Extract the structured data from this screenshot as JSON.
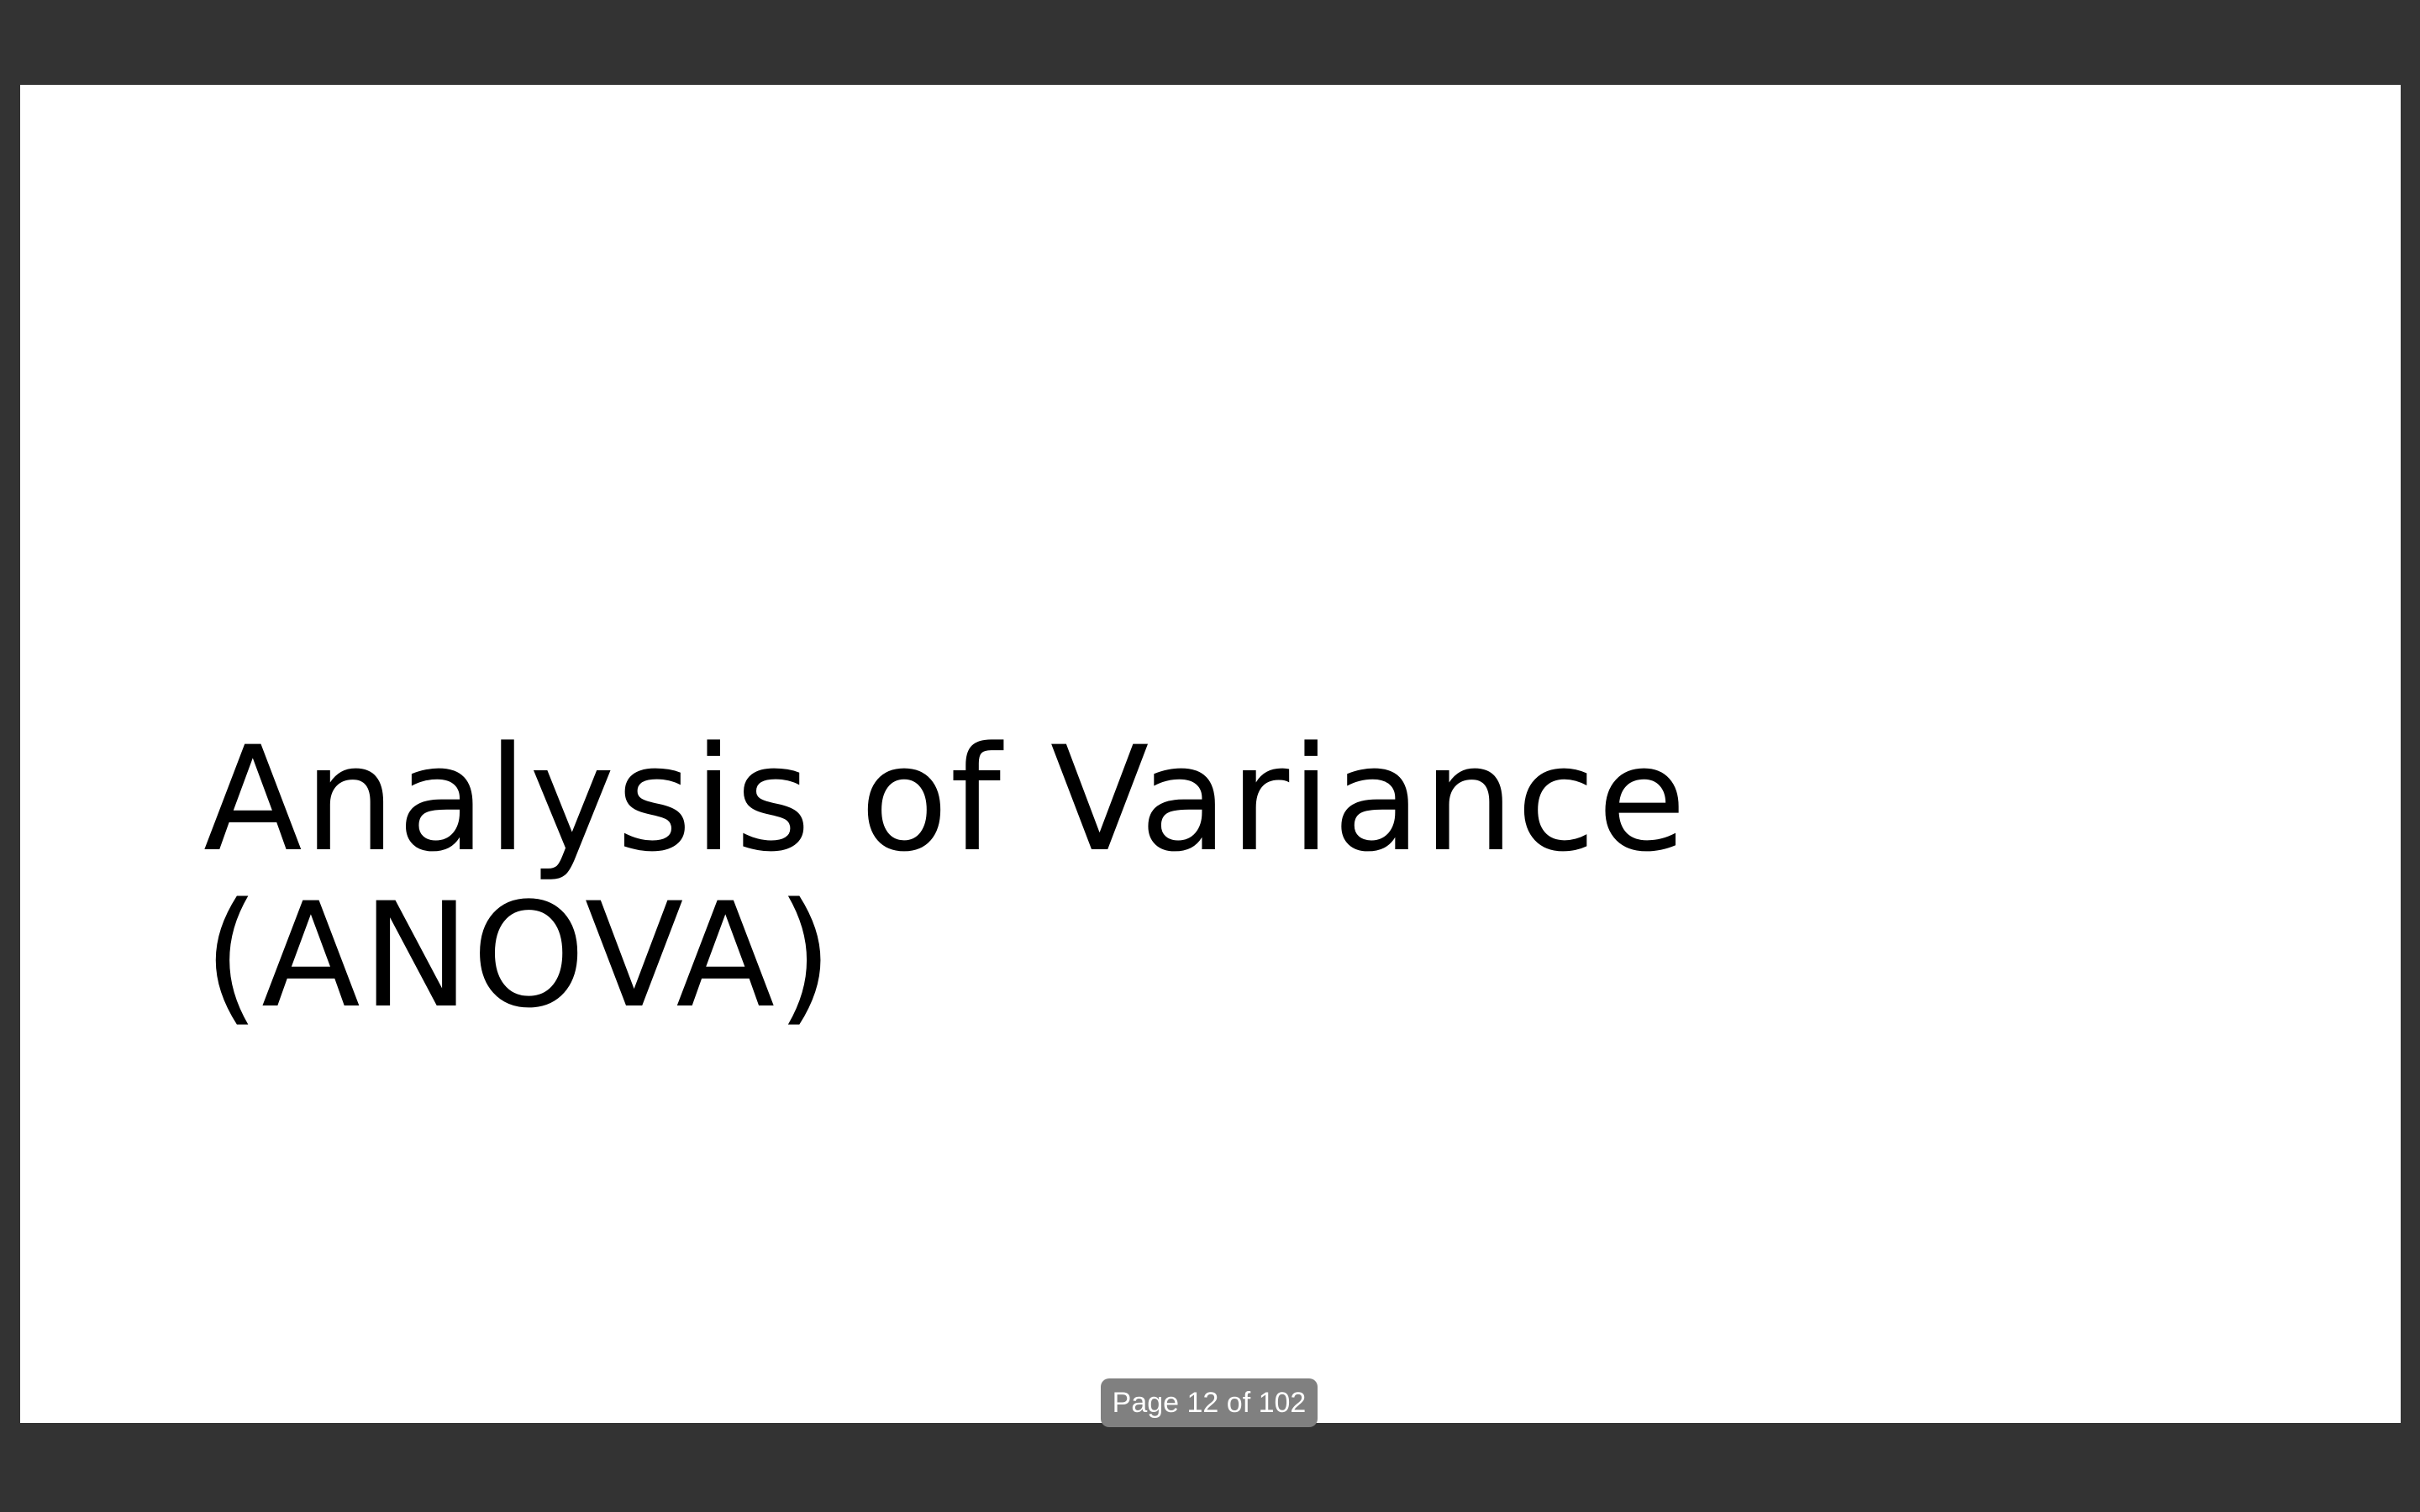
{
  "slide": {
    "title_line1": "Analysis of Variance",
    "title_line2": "(ANOVA)"
  },
  "viewer": {
    "page_indicator": "Page 12 of 102"
  },
  "colors": {
    "background": "#333333",
    "slide": "#ffffff",
    "text": "#000000",
    "indicator_bg": "#808080",
    "indicator_text": "#ffffff"
  }
}
